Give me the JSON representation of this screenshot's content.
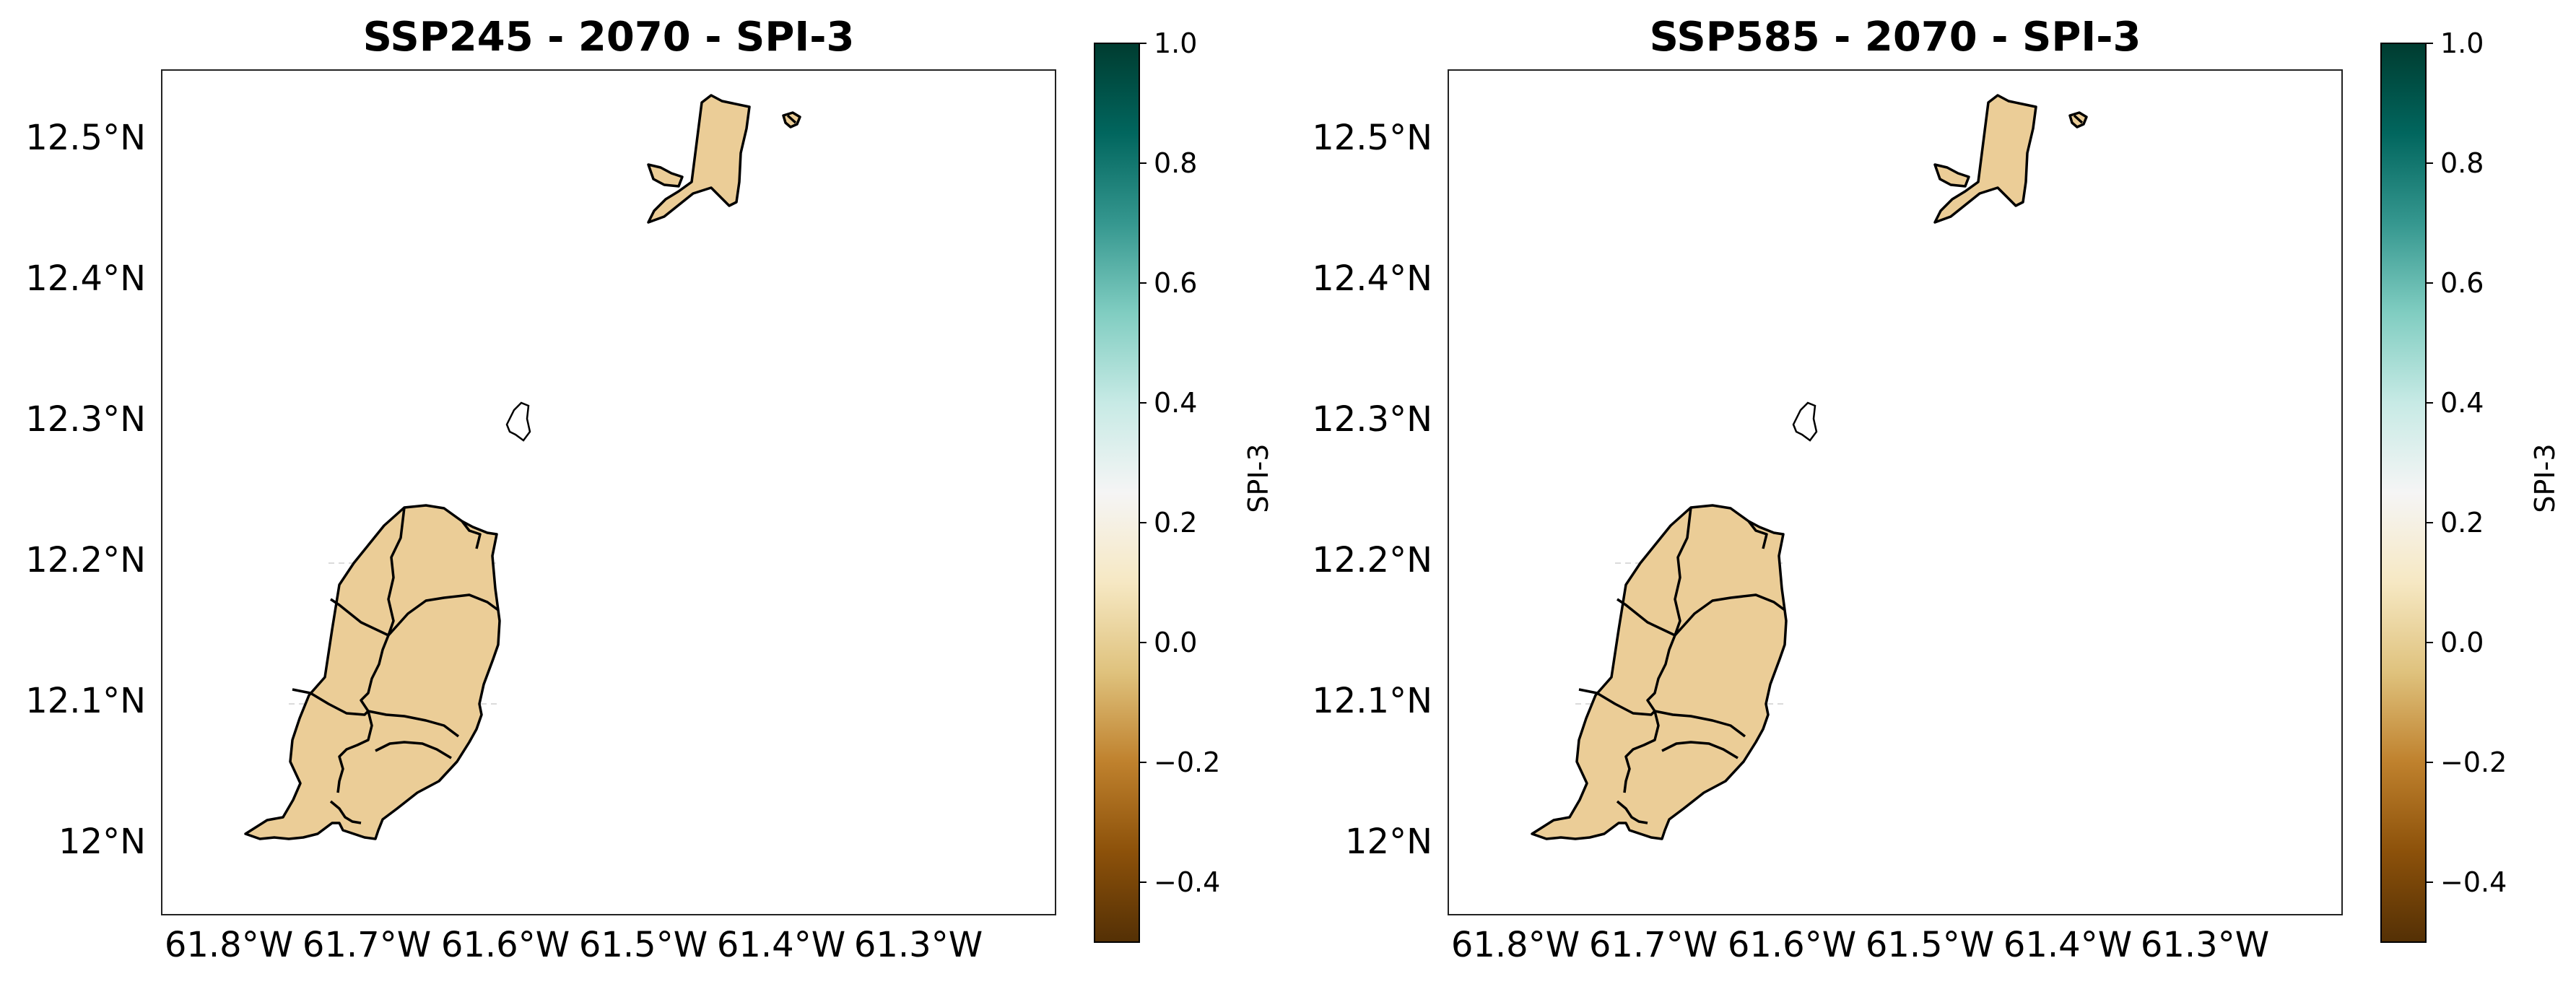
{
  "figure": {
    "panels": [
      {
        "title": "SSP245 - 2070 - SPI-3",
        "lat_ticks": [
          "12.5°N",
          "12.4°N",
          "12.3°N",
          "12.2°N",
          "12.1°N",
          "12°N"
        ],
        "lon_ticks": [
          "61.8°W",
          "61.7°W",
          "61.6°W",
          "61.5°W",
          "61.4°W",
          "61.3°W"
        ],
        "fill_value": 0.0,
        "fill_color": "#ebcd97",
        "colorbar": {
          "label": "SPI-3",
          "ticks": [
            "1.0",
            "0.8",
            "0.6",
            "0.4",
            "0.2",
            "0.0",
            "−0.2",
            "−0.4"
          ]
        }
      },
      {
        "title": "SSP585 - 2070 - SPI-3",
        "lat_ticks": [
          "12.5°N",
          "12.4°N",
          "12.3°N",
          "12.2°N",
          "12.1°N",
          "12°N"
        ],
        "lon_ticks": [
          "61.8°W",
          "61.7°W",
          "61.6°W",
          "61.5°W",
          "61.4°W",
          "61.3°W"
        ],
        "fill_value": 0.0,
        "fill_color": "#ebcd97",
        "colorbar": {
          "label": "SPI-3",
          "ticks": [
            "1.0",
            "0.8",
            "0.6",
            "0.4",
            "0.2",
            "0.0",
            "−0.2",
            "−0.4"
          ]
        }
      }
    ],
    "colormap": {
      "name": "BrBG",
      "vmin": -0.5,
      "vmax": 1.0,
      "stops": [
        "#543005",
        "#8c510a",
        "#bf812d",
        "#dfc27d",
        "#f6e8c3",
        "#f5f5f5",
        "#c7eae5",
        "#80cdc1",
        "#35978f",
        "#01665e",
        "#003c30"
      ]
    },
    "colors": {
      "outline": "#000000",
      "gridline": "#bbbbbb",
      "axes_frame": "#222222"
    }
  }
}
